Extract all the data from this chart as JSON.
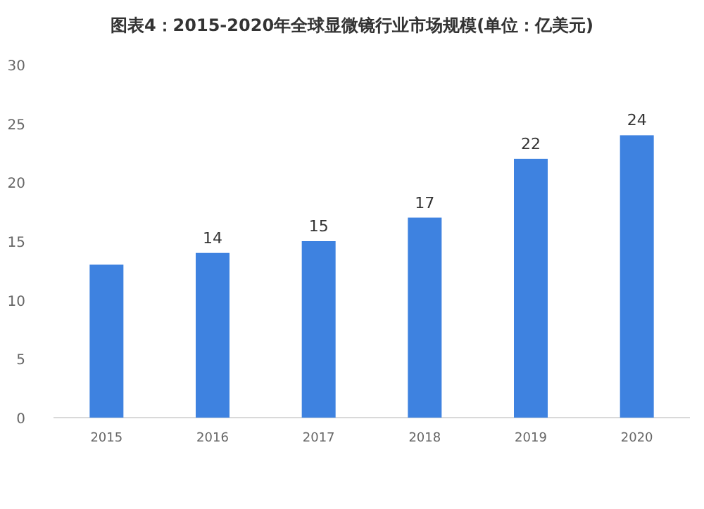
{
  "chart_data": {
    "type": "bar",
    "title": "图表4：2015-2020年全球显微镜行业市场规模(单位：亿美元)",
    "categories": [
      "2015",
      "2016",
      "2017",
      "2018",
      "2019",
      "2020"
    ],
    "values": [
      13,
      14,
      15,
      17,
      22,
      24
    ],
    "value_labels": [
      null,
      "14",
      "15",
      "17",
      "22",
      "24"
    ],
    "color": "#3e82e0",
    "ylim": [
      0,
      30
    ],
    "yticks": [
      0,
      5,
      10,
      15,
      20,
      25,
      30
    ],
    "grid": false
  }
}
